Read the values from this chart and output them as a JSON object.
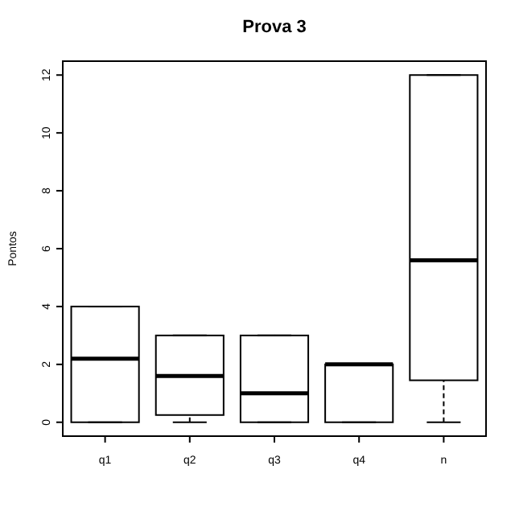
{
  "chart_data": {
    "type": "box",
    "title": "Prova 3",
    "ylabel": "Pontos",
    "categories": [
      "q1",
      "q2",
      "q3",
      "q4",
      "n"
    ],
    "boxes": [
      {
        "low": 0,
        "q1": 0,
        "median": 2.2,
        "q3": 4,
        "high": 4
      },
      {
        "low": 0,
        "q1": 0.25,
        "median": 1.6,
        "q3": 3,
        "high": 3
      },
      {
        "low": 0,
        "q1": 0,
        "median": 1,
        "q3": 3,
        "high": 3
      },
      {
        "low": 0,
        "q1": 0,
        "median": 2,
        "q3": 2,
        "high": 2
      },
      {
        "low": 0,
        "q1": 1.45,
        "median": 5.6,
        "q3": 12,
        "high": 12
      }
    ],
    "ylim": [
      -0.48,
      12.48
    ],
    "yticks": [
      0,
      2,
      4,
      6,
      8,
      10,
      12
    ],
    "line_style": "dashed",
    "grid": false
  }
}
